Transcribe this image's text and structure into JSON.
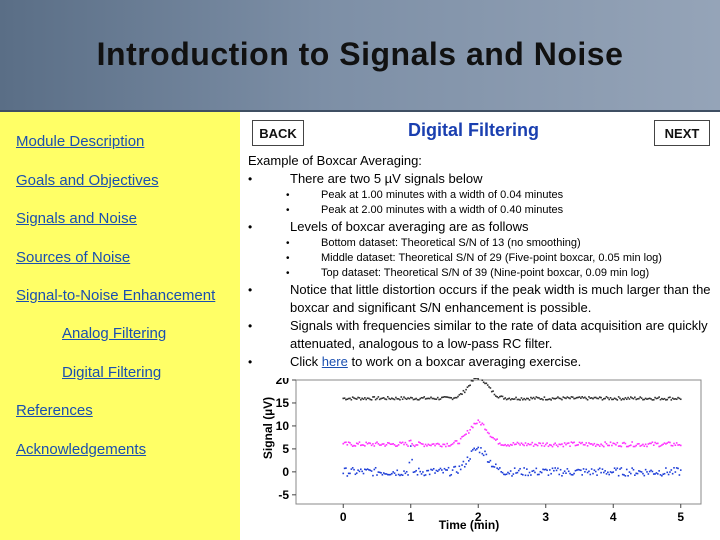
{
  "header": {
    "title": "Introduction to Signals and Noise"
  },
  "sidebar": {
    "items": [
      {
        "label": "Module Description",
        "indent": false
      },
      {
        "label": "Goals and Objectives",
        "indent": false
      },
      {
        "label": "Signals and Noise",
        "indent": false
      },
      {
        "label": "Sources of Noise",
        "indent": false
      },
      {
        "label": "Signal-to-Noise Enhancement",
        "indent": false
      },
      {
        "label": "Analog Filtering",
        "indent": true
      },
      {
        "label": "Digital Filtering",
        "indent": true
      },
      {
        "label": "References",
        "indent": false
      },
      {
        "label": "Acknowledgements",
        "indent": false
      }
    ]
  },
  "nav": {
    "back_label": "BACK",
    "next_label": "NEXT"
  },
  "main": {
    "section_title": "Digital Filtering",
    "example_heading": "Example of Boxcar Averaging:",
    "bullet1": "There are two 5 µV signals below",
    "bullet1_sub": [
      "Peak at 1.00 minutes with a width of 0.04 minutes",
      "Peak at 2.00 minutes with a width of 0.40 minutes"
    ],
    "bullet2": "Levels of boxcar averaging are as follows",
    "bullet2_sub": [
      "Bottom dataset: Theoretical S/N of 13 (no smoothing)",
      "Middle dataset: Theoretical S/N of 29 (Five-point boxcar, 0.05 min log)",
      "Top dataset: Theoretical S/N of 39 (Nine-point boxcar, 0.09 min log)"
    ],
    "bullet3": "Notice that little distortion occurs if the peak width is much larger than the boxcar and significant S/N enhancement is possible.",
    "bullet4": "Signals with frequencies similar to the rate of data acquisition are quickly attenuated, analogous to a low-pass RC filter.",
    "bullet5_pre": "Click",
    "bullet5_link": "here",
    "bullet5_post": "to work on a boxcar averaging exercise."
  },
  "chart_data": {
    "type": "scatter",
    "xlabel": "Time (min)",
    "ylabel": "Signal (µV)",
    "xlim": [
      -0.7,
      5.3
    ],
    "ylim": [
      -7,
      20
    ],
    "xticks": [
      0,
      1,
      2,
      3,
      4,
      5
    ],
    "yticks": [
      -5,
      0,
      5,
      10,
      15,
      20
    ],
    "grid": false,
    "series": [
      {
        "color": "#333333",
        "baseline": 16,
        "peaks": [
          {
            "x": 1.0,
            "width": 0.04,
            "height": 0.0
          },
          {
            "x": 2.0,
            "width": 0.4,
            "height": 4.5
          }
        ],
        "noise": 0.35
      },
      {
        "color": "#ff33ff",
        "baseline": 6,
        "peaks": [
          {
            "x": 1.0,
            "width": 0.04,
            "height": 1.0
          },
          {
            "x": 2.0,
            "width": 0.4,
            "height": 4.8
          }
        ],
        "noise": 0.5
      },
      {
        "color": "#1f3fd8",
        "baseline": 0,
        "peaks": [
          {
            "x": 1.0,
            "width": 0.04,
            "height": 5.0
          },
          {
            "x": 2.0,
            "width": 0.4,
            "height": 5.0
          }
        ],
        "noise": 0.9
      }
    ]
  }
}
